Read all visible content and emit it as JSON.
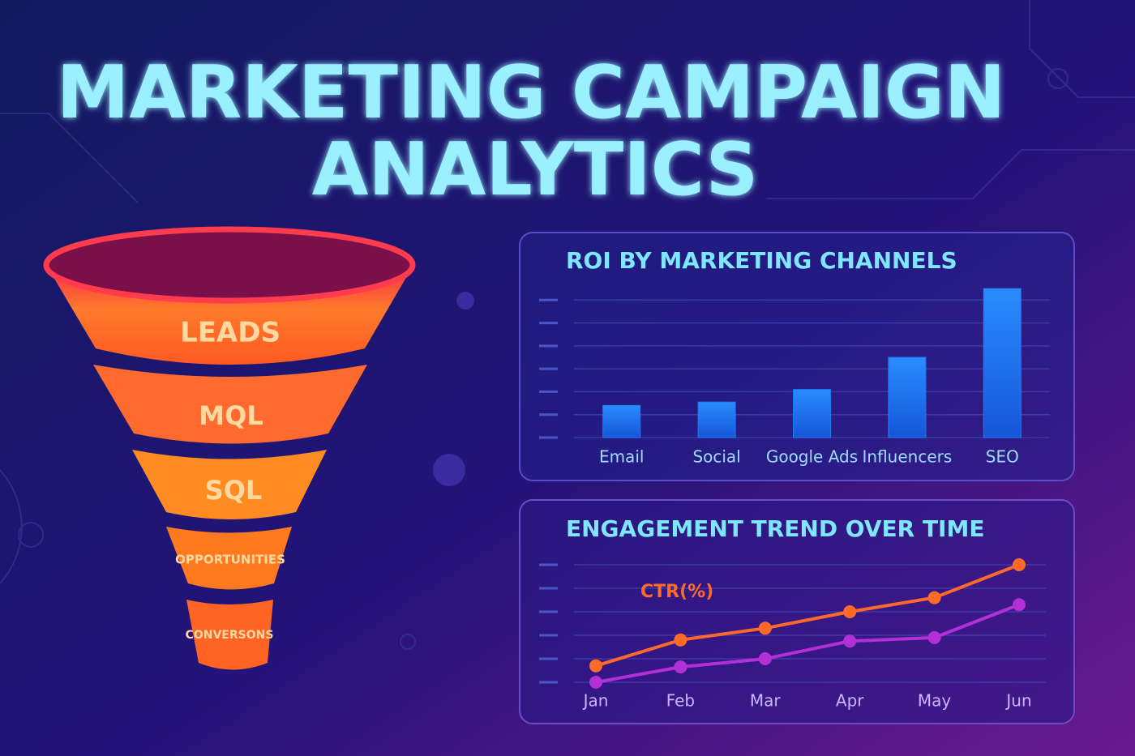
{
  "title": [
    "MARKETING CAMPAIGN",
    "ANALYTICS"
  ],
  "funnel": {
    "stages": [
      "LEADS",
      "MQL",
      "SQL",
      "OPPORTUNITIES",
      "CONVERSONS"
    ]
  },
  "chart_data": [
    {
      "type": "bar",
      "title": "ROI BY MARKETING CHANNELS",
      "categories": [
        "Email",
        "Social",
        "Google Ads",
        "Influencers",
        "SEO"
      ],
      "values": [
        1.4,
        1.55,
        2.1,
        3.5,
        6.5
      ],
      "color": "#1f7cf0",
      "ylim": [
        0,
        7
      ],
      "yticks": [
        0,
        1,
        2,
        3,
        4,
        5,
        6
      ],
      "grid": true
    },
    {
      "type": "line",
      "title": "ENGAGEMENT TREND OVER TIME",
      "categories": [
        "Jan",
        "Feb",
        "Mar",
        "Apr",
        "May",
        "Jun"
      ],
      "series": [
        {
          "name": "CTR(%)",
          "color": "#ff6a2a",
          "values": [
            0.7,
            1.8,
            2.3,
            3.0,
            3.6,
            5.0
          ]
        },
        {
          "color": "#b32fd6",
          "values": [
            0,
            0.65,
            1.0,
            1.75,
            1.9,
            3.3
          ]
        }
      ],
      "ylim": [
        0,
        5.5
      ],
      "yticks": [
        0,
        1,
        2,
        3,
        4,
        5
      ],
      "grid": true
    }
  ]
}
